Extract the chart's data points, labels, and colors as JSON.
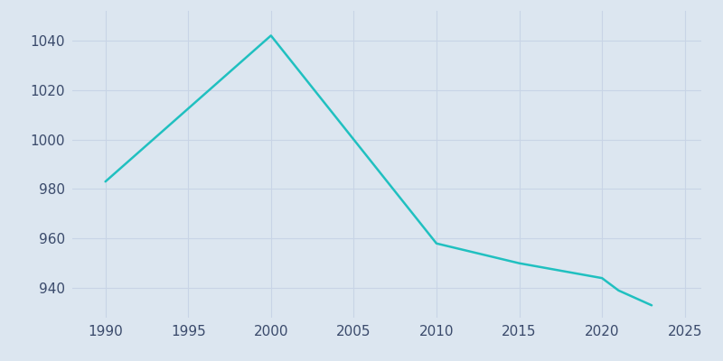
{
  "years": [
    1990,
    2000,
    2010,
    2015,
    2020,
    2021,
    2022,
    2023
  ],
  "values": [
    983,
    1042,
    958,
    950,
    944,
    939,
    936,
    933
  ],
  "line_color": "#20c0c0",
  "background_color": "#dce6f0",
  "grid_color": "#c8d4e6",
  "xlim": [
    1988,
    2026
  ],
  "ylim": [
    928,
    1052
  ],
  "xticks": [
    1990,
    1995,
    2000,
    2005,
    2010,
    2015,
    2020,
    2025
  ],
  "yticks": [
    940,
    960,
    980,
    1000,
    1020,
    1040
  ],
  "line_width": 1.8,
  "tick_color": "#3a4a6b",
  "tick_fontsize": 11
}
